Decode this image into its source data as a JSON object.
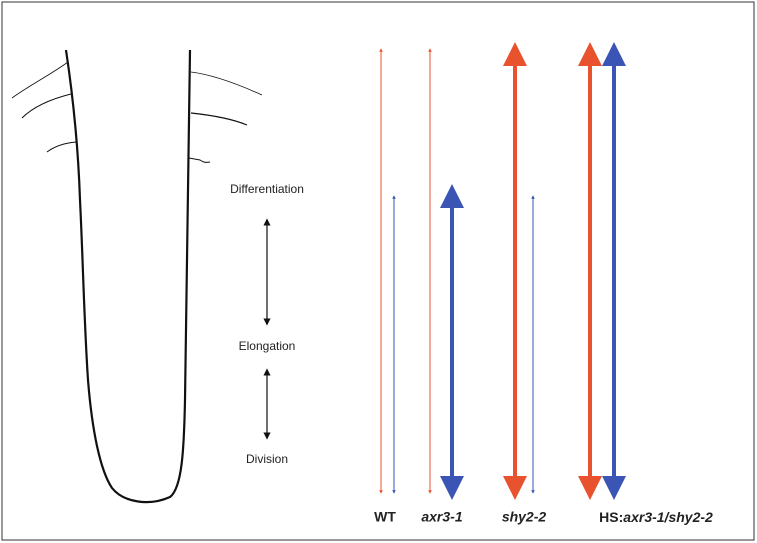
{
  "stages": [
    "Differentiation",
    "Elongation",
    "Division"
  ],
  "genotypes": [
    {
      "label": "WT"
    },
    {
      "label": "axr3-1"
    },
    {
      "label": "shy2-2"
    },
    {
      "prefix": "HS:",
      "label": "axr3-1/shy2-2"
    }
  ]
}
